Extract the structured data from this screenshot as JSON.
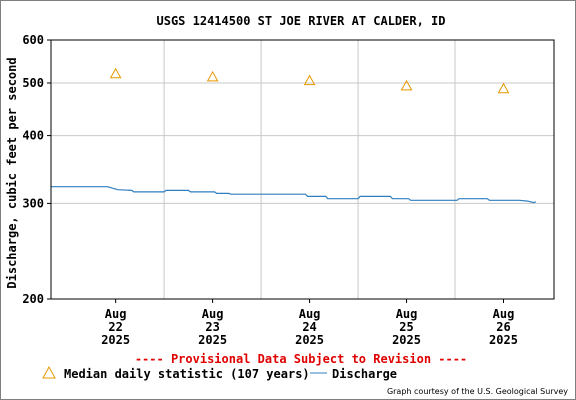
{
  "chart_data": {
    "type": "line",
    "title": "USGS 12414500 ST JOE RIVER AT CALDER, ID",
    "ylabel": "Discharge, cubic feet per second",
    "y_scale": "log",
    "ylim": [
      200,
      600
    ],
    "y_ticks": [
      {
        "value": 200,
        "label": "200"
      },
      {
        "value": 300,
        "label": "300"
      },
      {
        "value": 400,
        "label": "400"
      },
      {
        "value": 500,
        "label": "500"
      },
      {
        "value": 600,
        "label": "600"
      }
    ],
    "xlim": [
      "2025-08-21T08:00",
      "2025-08-26T12:30"
    ],
    "x_ticks": [
      {
        "value": "2025-08-22T00:00",
        "line1": "Aug",
        "line2": "22",
        "line3": "2025"
      },
      {
        "value": "2025-08-23T00:00",
        "line1": "Aug",
        "line2": "23",
        "line3": "2025"
      },
      {
        "value": "2025-08-24T00:00",
        "line1": "Aug",
        "line2": "24",
        "line3": "2025"
      },
      {
        "value": "2025-08-25T00:00",
        "line1": "Aug",
        "line2": "25",
        "line3": "2025"
      },
      {
        "value": "2025-08-26T00:00",
        "line1": "Aug",
        "line2": "26",
        "line3": "2025"
      }
    ],
    "x_gridlines": [
      "2025-08-22T12:00",
      "2025-08-23T12:00",
      "2025-08-24T12:00",
      "2025-08-25T12:00"
    ],
    "y_gridlines": [
      300,
      400,
      500
    ],
    "grid": true,
    "series": [
      {
        "name": "Median daily statistic (107 years)",
        "marker": "triangle",
        "color": "#e69900",
        "points": [
          {
            "x": "2025-08-22T00:00",
            "y": 520
          },
          {
            "x": "2025-08-23T00:00",
            "y": 513
          },
          {
            "x": "2025-08-24T00:00",
            "y": 505
          },
          {
            "x": "2025-08-25T00:00",
            "y": 494
          },
          {
            "x": "2025-08-26T00:00",
            "y": 488
          }
        ]
      },
      {
        "name": "Discharge",
        "color": "#2f7fbf",
        "points": [
          {
            "x": "2025-08-21T08:00",
            "y": 322
          },
          {
            "x": "2025-08-21T22:00",
            "y": 322
          },
          {
            "x": "2025-08-22T00:30",
            "y": 318
          },
          {
            "x": "2025-08-22T04:00",
            "y": 317
          },
          {
            "x": "2025-08-22T04:30",
            "y": 315
          },
          {
            "x": "2025-08-22T12:00",
            "y": 315
          },
          {
            "x": "2025-08-22T12:30",
            "y": 317
          },
          {
            "x": "2025-08-22T18:00",
            "y": 317
          },
          {
            "x": "2025-08-22T18:30",
            "y": 315
          },
          {
            "x": "2025-08-23T00:30",
            "y": 315
          },
          {
            "x": "2025-08-23T01:00",
            "y": 313
          },
          {
            "x": "2025-08-23T04:00",
            "y": 313
          },
          {
            "x": "2025-08-23T04:30",
            "y": 312
          },
          {
            "x": "2025-08-23T23:00",
            "y": 312
          },
          {
            "x": "2025-08-23T23:30",
            "y": 309
          },
          {
            "x": "2025-08-24T04:00",
            "y": 309
          },
          {
            "x": "2025-08-24T04:30",
            "y": 306
          },
          {
            "x": "2025-08-24T12:00",
            "y": 306
          },
          {
            "x": "2025-08-24T12:30",
            "y": 309
          },
          {
            "x": "2025-08-24T20:00",
            "y": 309
          },
          {
            "x": "2025-08-24T20:30",
            "y": 306
          },
          {
            "x": "2025-08-25T00:30",
            "y": 306
          },
          {
            "x": "2025-08-25T01:00",
            "y": 304
          },
          {
            "x": "2025-08-25T12:30",
            "y": 304
          },
          {
            "x": "2025-08-25T13:00",
            "y": 306
          },
          {
            "x": "2025-08-25T20:00",
            "y": 306
          },
          {
            "x": "2025-08-25T20:30",
            "y": 304
          },
          {
            "x": "2025-08-26T04:00",
            "y": 304
          },
          {
            "x": "2025-08-26T06:00",
            "y": 303
          },
          {
            "x": "2025-08-26T07:30",
            "y": 301
          },
          {
            "x": "2025-08-26T08:00",
            "y": 302
          }
        ]
      }
    ],
    "legend": {
      "placement": "bottom-left"
    },
    "provisional_notice": "---- Provisional Data Subject to Revision ----",
    "credit": "Graph courtesy of the U.S. Geological Survey"
  },
  "colors": {
    "grid": "#c8c8c8",
    "axis": "#000000",
    "notice": "#e00000",
    "median": "#e69900",
    "discharge": "#2f7fbf"
  }
}
